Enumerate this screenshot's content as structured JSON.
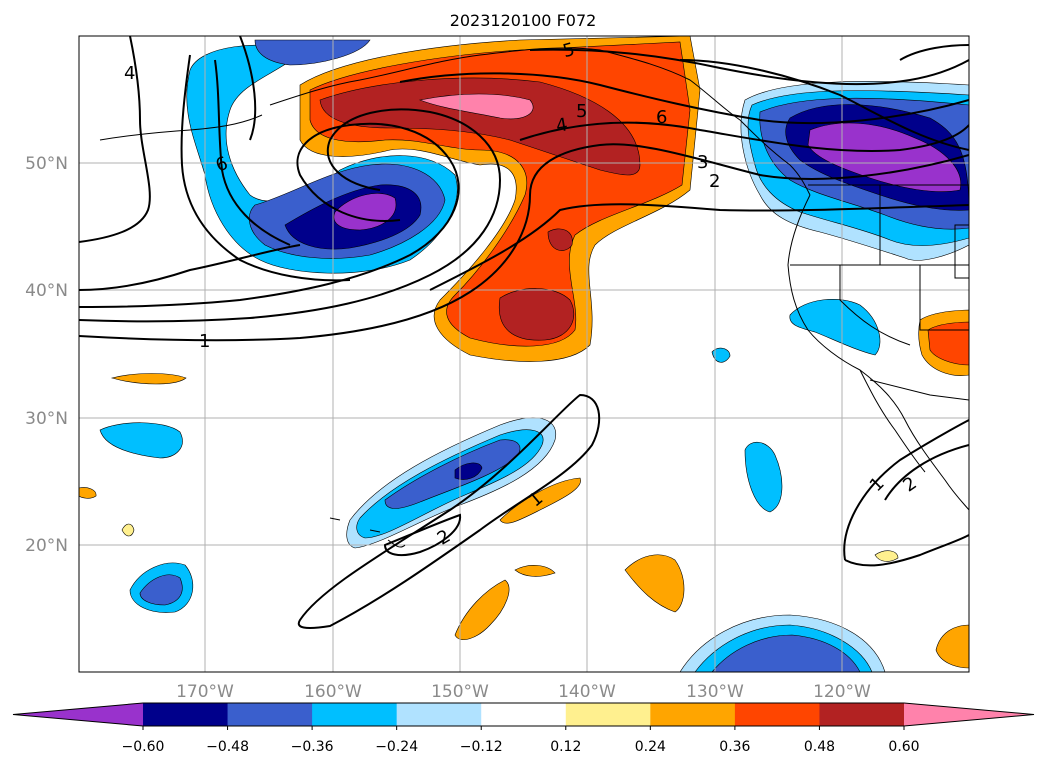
{
  "title": "2023120100 F072",
  "lat_labels": [
    "50°N",
    "40°N",
    "30°N",
    "20°N"
  ],
  "lon_labels": [
    "170°W",
    "160°W",
    "150°W",
    "140°W",
    "130°W",
    "120°W"
  ],
  "colorbar": {
    "colors": [
      "#9932cc",
      "#00008b",
      "#3a5fcd",
      "#00bfff",
      "#b0e2ff",
      "#ffffff",
      "#fff08f",
      "#ffa500",
      "#ff4500",
      "#b22222",
      "#ff82ab"
    ],
    "ticks": [
      "−0.60",
      "−0.48",
      "−0.36",
      "−0.24",
      "−0.12",
      "0.12",
      "0.24",
      "0.36",
      "0.48",
      "0.60"
    ]
  },
  "contour_labels": [
    "4",
    "6",
    "1",
    "5",
    "4",
    "5",
    "6",
    "3",
    "2",
    "1",
    "2",
    "1",
    "2"
  ]
}
